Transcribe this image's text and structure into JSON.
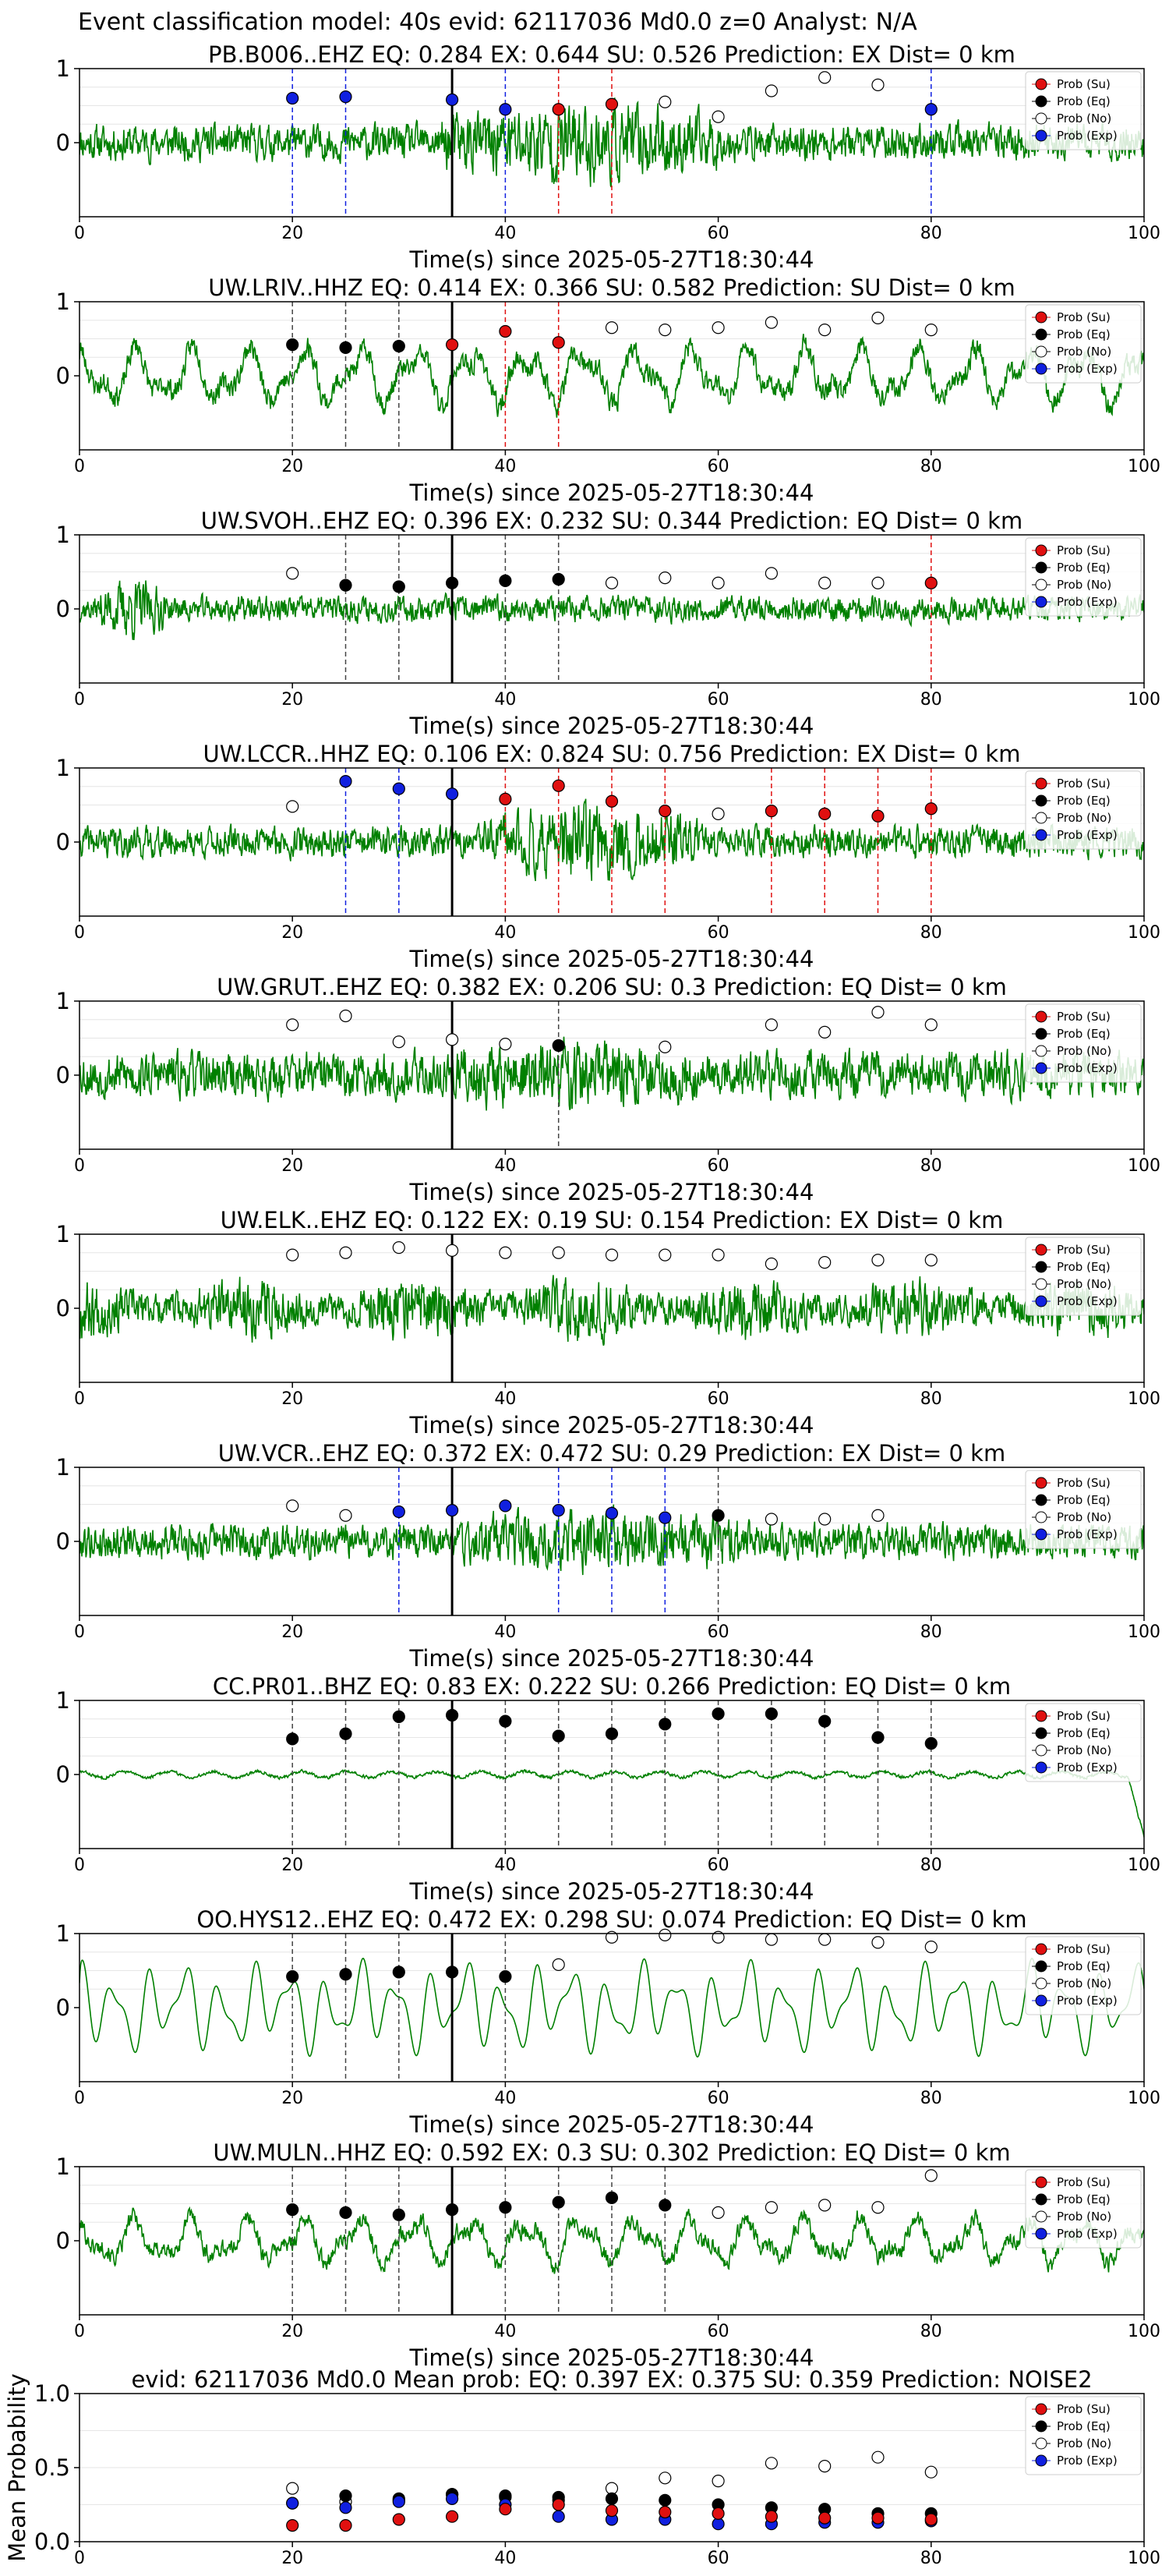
{
  "figure_title": "Event classification model: 40s evid: 62117036 Md0.0 z=0 Analyst: N/A",
  "xlabel": "Time(s) since 2025-05-27T18:30:44",
  "legend": [
    "Prob (Su)",
    "Prob (Eq)",
    "Prob (No)",
    "Prob (Exp)"
  ],
  "class_colors": {
    "su": "#e01010",
    "eq": "#000000",
    "no": "#ffffff",
    "exp": "#1020e0",
    "waveform": "#008000"
  },
  "window_centers": [
    20,
    25,
    30,
    35,
    40,
    45,
    50,
    55,
    60,
    65,
    70,
    75,
    80
  ],
  "chart_data": [
    {
      "type": "line",
      "title": "PB.B006..EHZ   EQ: 0.284  EX: 0.644  SU: 0.526   Prediction: EX    Dist= 0 km",
      "xlim": [
        0,
        100
      ],
      "ylim": [
        -1,
        1
      ],
      "xticks": [
        0,
        20,
        40,
        60,
        80,
        100
      ],
      "yticks": [
        0,
        1
      ],
      "waveform": {
        "amplitude": 0.35,
        "style": "burst",
        "burst_start": 34,
        "burst_end": 60,
        "burst_gain": 2.4,
        "seed": 11
      },
      "arrival": 35,
      "points": [
        [
          "exp",
          0.6
        ],
        [
          "exp",
          0.62
        ],
        null,
        [
          "exp",
          0.58
        ],
        [
          "exp",
          0.45
        ],
        [
          "su",
          0.45
        ],
        [
          "su",
          0.52
        ],
        [
          "no",
          0.55
        ],
        [
          "no",
          0.35
        ],
        [
          "no",
          0.7
        ],
        [
          "no",
          0.88
        ],
        [
          "no",
          0.78
        ],
        [
          "exp",
          0.45
        ]
      ],
      "vlines": [
        [
          "exp",
          20
        ],
        [
          "exp",
          25
        ],
        [
          "exp",
          40
        ],
        [
          "su",
          45
        ],
        [
          "su",
          50
        ],
        [
          "exp",
          80
        ]
      ]
    },
    {
      "type": "line",
      "title": "UW.LRIV..HHZ   EQ: 0.414  EX: 0.366  SU: 0.582   Prediction: SU    Dist= 0 km",
      "xlim": [
        0,
        100
      ],
      "ylim": [
        -1,
        1
      ],
      "xticks": [
        0,
        20,
        40,
        60,
        80,
        100
      ],
      "yticks": [
        0,
        1
      ],
      "waveform": {
        "amplitude": 0.5,
        "style": "wavy",
        "seed": 23
      },
      "arrival": 35,
      "points": [
        [
          "eq",
          0.42
        ],
        [
          "eq",
          0.38
        ],
        [
          "eq",
          0.4
        ],
        [
          "su",
          0.42
        ],
        [
          "su",
          0.6
        ],
        [
          "su",
          0.45
        ],
        [
          "no",
          0.65
        ],
        [
          "no",
          0.62
        ],
        [
          "no",
          0.65
        ],
        [
          "no",
          0.72
        ],
        [
          "no",
          0.62
        ],
        [
          "no",
          0.78
        ],
        [
          "no",
          0.62
        ]
      ],
      "vlines": [
        [
          "eq",
          20
        ],
        [
          "eq",
          25
        ],
        [
          "eq",
          30
        ],
        [
          "su",
          40
        ],
        [
          "su",
          45
        ]
      ]
    },
    {
      "type": "line",
      "title": "UW.SVOH..EHZ   EQ: 0.396  EX: 0.232  SU: 0.344   Prediction: EQ    Dist= 0 km",
      "xlim": [
        0,
        100
      ],
      "ylim": [
        -1,
        1
      ],
      "xticks": [
        0,
        20,
        40,
        60,
        80,
        100
      ],
      "yticks": [
        0,
        1
      ],
      "waveform": {
        "amplitude": 0.25,
        "style": "burst",
        "burst_start": 2,
        "burst_end": 8,
        "burst_gain": 2.5,
        "seed": 37
      },
      "arrival": 35,
      "points": [
        [
          "no",
          0.48
        ],
        [
          "eq",
          0.32
        ],
        [
          "eq",
          0.3
        ],
        [
          "eq",
          0.35
        ],
        [
          "eq",
          0.38
        ],
        [
          "eq",
          0.4
        ],
        [
          "no",
          0.35
        ],
        [
          "no",
          0.42
        ],
        [
          "no",
          0.35
        ],
        [
          "no",
          0.48
        ],
        [
          "no",
          0.35
        ],
        [
          "no",
          0.35
        ],
        [
          "su",
          0.35
        ]
      ],
      "vlines": [
        [
          "eq",
          25
        ],
        [
          "eq",
          30
        ],
        [
          "eq",
          40
        ],
        [
          "eq",
          45
        ],
        [
          "su",
          80
        ]
      ]
    },
    {
      "type": "line",
      "title": "UW.LCCR..HHZ   EQ: 0.106  EX: 0.824  SU: 0.756   Prediction: EX    Dist= 0 km",
      "xlim": [
        0,
        100
      ],
      "ylim": [
        -1,
        1
      ],
      "xticks": [
        0,
        20,
        40,
        60,
        80,
        100
      ],
      "yticks": [
        0,
        1
      ],
      "waveform": {
        "amplitude": 0.3,
        "style": "burst",
        "burst_start": 38,
        "burst_end": 58,
        "burst_gain": 2.6,
        "seed": 41
      },
      "arrival": 35,
      "points": [
        [
          "no",
          0.48
        ],
        [
          "exp",
          0.82
        ],
        [
          "exp",
          0.72
        ],
        [
          "exp",
          0.65
        ],
        [
          "su",
          0.58
        ],
        [
          "su",
          0.76
        ],
        [
          "su",
          0.55
        ],
        [
          "su",
          0.42
        ],
        [
          "no",
          0.38
        ],
        [
          "su",
          0.42
        ],
        [
          "su",
          0.38
        ],
        [
          "su",
          0.35
        ],
        [
          "su",
          0.45
        ]
      ],
      "vlines": [
        [
          "exp",
          25
        ],
        [
          "exp",
          30
        ],
        [
          "su",
          40
        ],
        [
          "su",
          45
        ],
        [
          "su",
          50
        ],
        [
          "su",
          55
        ],
        [
          "su",
          65
        ],
        [
          "su",
          70
        ],
        [
          "su",
          75
        ],
        [
          "su",
          80
        ]
      ]
    },
    {
      "type": "line",
      "title": "UW.GRUT..EHZ   EQ: 0.382  EX: 0.206  SU: 0.3   Prediction: EQ    Dist= 0 km",
      "xlim": [
        0,
        100
      ],
      "ylim": [
        -1,
        1
      ],
      "xticks": [
        0,
        20,
        40,
        60,
        80,
        100
      ],
      "yticks": [
        0,
        1
      ],
      "waveform": {
        "amplitude": 0.45,
        "style": "burst",
        "burst_start": 35,
        "burst_end": 58,
        "burst_gain": 1.6,
        "seed": 53
      },
      "arrival": 35,
      "points": [
        [
          "no",
          0.68
        ],
        [
          "no",
          0.8
        ],
        [
          "no",
          0.45
        ],
        [
          "no",
          0.48
        ],
        [
          "no",
          0.42
        ],
        [
          "eq",
          0.4
        ],
        null,
        [
          "no",
          0.38
        ],
        null,
        [
          "no",
          0.68
        ],
        [
          "no",
          0.58
        ],
        [
          "no",
          0.85
        ],
        [
          "no",
          0.68
        ]
      ],
      "vlines": [
        [
          "eq",
          45
        ]
      ]
    },
    {
      "type": "line",
      "title": "UW.ELK..EHZ   EQ: 0.122  EX: 0.19  SU: 0.154   Prediction: EX    Dist= 0 km",
      "xlim": [
        0,
        100
      ],
      "ylim": [
        -1,
        1
      ],
      "xticks": [
        0,
        20,
        40,
        60,
        80,
        100
      ],
      "yticks": [
        0,
        1
      ],
      "waveform": {
        "amplitude": 0.6,
        "style": "noise",
        "seed": 67
      },
      "arrival": 35,
      "points": [
        [
          "no",
          0.72
        ],
        [
          "no",
          0.75
        ],
        [
          "no",
          0.82
        ],
        [
          "no",
          0.78
        ],
        [
          "no",
          0.75
        ],
        [
          "no",
          0.75
        ],
        [
          "no",
          0.72
        ],
        [
          "no",
          0.72
        ],
        [
          "no",
          0.72
        ],
        [
          "no",
          0.6
        ],
        [
          "no",
          0.62
        ],
        [
          "no",
          0.65
        ],
        [
          "no",
          0.65
        ]
      ],
      "vlines": []
    },
    {
      "type": "line",
      "title": "UW.VCR..EHZ   EQ: 0.372  EX: 0.472  SU: 0.29   Prediction: EX    Dist= 0 km",
      "xlim": [
        0,
        100
      ],
      "ylim": [
        -1,
        1
      ],
      "xticks": [
        0,
        20,
        40,
        60,
        80,
        100
      ],
      "yticks": [
        0,
        1
      ],
      "waveform": {
        "amplitude": 0.35,
        "style": "burst",
        "burst_start": 36,
        "burst_end": 62,
        "burst_gain": 1.8,
        "seed": 79
      },
      "arrival": 35,
      "points": [
        [
          "no",
          0.48
        ],
        [
          "no",
          0.35
        ],
        [
          "exp",
          0.4
        ],
        [
          "exp",
          0.42
        ],
        [
          "exp",
          0.48
        ],
        [
          "exp",
          0.42
        ],
        [
          "exp",
          0.38
        ],
        [
          "exp",
          0.32
        ],
        [
          "eq",
          0.35
        ],
        [
          "no",
          0.3
        ],
        [
          "no",
          0.3
        ],
        [
          "no",
          0.35
        ],
        null
      ],
      "vlines": [
        [
          "exp",
          30
        ],
        [
          "exp",
          45
        ],
        [
          "exp",
          50
        ],
        [
          "exp",
          55
        ],
        [
          "eq",
          60
        ]
      ]
    },
    {
      "type": "line",
      "title": "CC.PR01..BHZ   EQ: 0.83  EX: 0.222  SU: 0.266   Prediction: EQ    Dist= 0 km",
      "xlim": [
        0,
        100
      ],
      "ylim": [
        -1,
        1
      ],
      "xticks": [
        0,
        20,
        40,
        60,
        80,
        100
      ],
      "yticks": [
        0,
        1
      ],
      "waveform": {
        "amplitude": 0.08,
        "style": "quiet",
        "seed": 83
      },
      "arrival": 35,
      "points": [
        [
          "eq",
          0.48
        ],
        [
          "eq",
          0.55
        ],
        [
          "eq",
          0.78
        ],
        [
          "eq",
          0.8
        ],
        [
          "eq",
          0.72
        ],
        [
          "eq",
          0.52
        ],
        [
          "eq",
          0.55
        ],
        [
          "eq",
          0.68
        ],
        [
          "eq",
          0.82
        ],
        [
          "eq",
          0.82
        ],
        [
          "eq",
          0.72
        ],
        [
          "eq",
          0.5
        ],
        [
          "eq",
          0.42
        ]
      ],
      "vlines": [
        [
          "eq",
          20
        ],
        [
          "eq",
          25
        ],
        [
          "eq",
          30
        ],
        [
          "eq",
          40
        ],
        [
          "eq",
          45
        ],
        [
          "eq",
          50
        ],
        [
          "eq",
          55
        ],
        [
          "eq",
          60
        ],
        [
          "eq",
          65
        ],
        [
          "eq",
          70
        ],
        [
          "eq",
          75
        ],
        [
          "eq",
          80
        ]
      ]
    },
    {
      "type": "line",
      "title": "OO.HYS12..EHZ   EQ: 0.472  EX: 0.298  SU: 0.074   Prediction: EQ    Dist= 0 km",
      "xlim": [
        0,
        100
      ],
      "ylim": [
        -1,
        1
      ],
      "xticks": [
        0,
        20,
        40,
        60,
        80,
        100
      ],
      "yticks": [
        0,
        1
      ],
      "waveform": {
        "amplitude": 0.55,
        "style": "smooth",
        "seed": 97
      },
      "arrival": 35,
      "points": [
        [
          "eq",
          0.42
        ],
        [
          "eq",
          0.45
        ],
        [
          "eq",
          0.48
        ],
        [
          "eq",
          0.48
        ],
        [
          "eq",
          0.42
        ],
        [
          "no",
          0.58
        ],
        [
          "no",
          0.95
        ],
        [
          "no",
          0.98
        ],
        [
          "no",
          0.95
        ],
        [
          "no",
          0.92
        ],
        [
          "no",
          0.92
        ],
        [
          "no",
          0.88
        ],
        [
          "no",
          0.82
        ]
      ],
      "vlines": [
        [
          "eq",
          20
        ],
        [
          "eq",
          25
        ],
        [
          "eq",
          30
        ],
        [
          "eq",
          40
        ]
      ]
    },
    {
      "type": "line",
      "title": "UW.MULN..HHZ   EQ: 0.592  EX: 0.3  SU: 0.302   Prediction: EQ    Dist= 0 km",
      "xlim": [
        0,
        100
      ],
      "ylim": [
        -1,
        1
      ],
      "xticks": [
        0,
        20,
        40,
        60,
        80,
        100
      ],
      "yticks": [
        0,
        1
      ],
      "waveform": {
        "amplitude": 0.4,
        "style": "wavy",
        "seed": 101
      },
      "arrival": 35,
      "points": [
        [
          "eq",
          0.42
        ],
        [
          "eq",
          0.38
        ],
        [
          "eq",
          0.35
        ],
        [
          "eq",
          0.42
        ],
        [
          "eq",
          0.45
        ],
        [
          "eq",
          0.52
        ],
        [
          "eq",
          0.58
        ],
        [
          "eq",
          0.48
        ],
        [
          "no",
          0.38
        ],
        [
          "no",
          0.45
        ],
        [
          "no",
          0.48
        ],
        [
          "no",
          0.45
        ],
        [
          "no",
          0.88
        ]
      ],
      "vlines": [
        [
          "eq",
          20
        ],
        [
          "eq",
          25
        ],
        [
          "eq",
          30
        ],
        [
          "eq",
          40
        ],
        [
          "eq",
          45
        ],
        [
          "eq",
          50
        ],
        [
          "eq",
          55
        ]
      ]
    },
    {
      "type": "scatter",
      "title": "evid: 62117036  Md0.0   Mean prob:   EQ: 0.397  EX: 0.375  SU: 0.359   Prediction: NOISE2",
      "ylabel": "Mean Probability",
      "xlim": [
        0,
        100
      ],
      "ylim": [
        0,
        1
      ],
      "xticks": [
        0,
        20,
        40,
        60,
        80,
        100
      ],
      "yticks": [
        0,
        0.5,
        1
      ],
      "ytick_labels": [
        "0.0",
        "0.5",
        "1.0"
      ],
      "series": [
        {
          "name": "Prob (No)",
          "cls": "no",
          "values": [
            0.36,
            0.27,
            0.28,
            0.32,
            0.3,
            0.28,
            0.36,
            0.43,
            0.41,
            0.53,
            0.51,
            0.57,
            0.47
          ]
        },
        {
          "name": "Prob (Eq)",
          "cls": "eq",
          "values": [
            0.26,
            0.31,
            0.29,
            0.32,
            0.31,
            0.3,
            0.29,
            0.28,
            0.25,
            0.23,
            0.22,
            0.19,
            0.19
          ]
        },
        {
          "name": "Prob (Exp)",
          "cls": "exp",
          "values": [
            0.26,
            0.23,
            0.27,
            0.29,
            0.25,
            0.17,
            0.15,
            0.15,
            0.12,
            0.12,
            0.13,
            0.13,
            0.14
          ]
        },
        {
          "name": "Prob (Su)",
          "cls": "su",
          "values": [
            0.11,
            0.11,
            0.15,
            0.17,
            0.22,
            0.25,
            0.21,
            0.2,
            0.19,
            0.17,
            0.16,
            0.16,
            0.15
          ]
        }
      ]
    }
  ]
}
